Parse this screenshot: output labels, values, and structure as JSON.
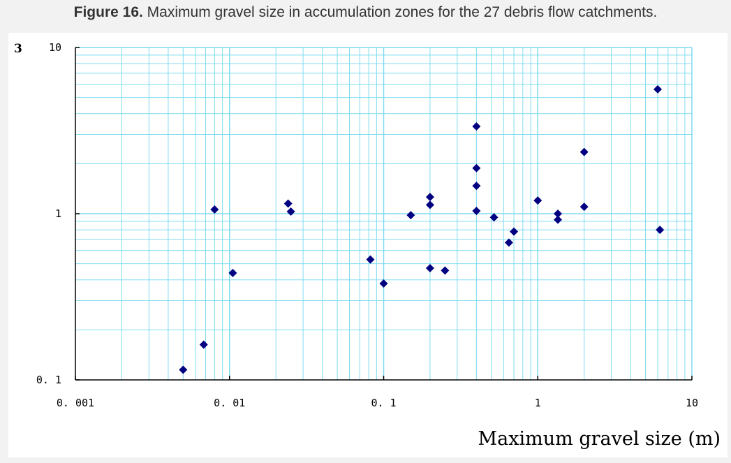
{
  "figure": {
    "label": "Figure 16.",
    "text": " Maximum gravel size in accumulation zones for the 27 debris flow catchments."
  },
  "chart_data": {
    "type": "scatter",
    "title": "",
    "xlabel": "Maximum gravel size (m)",
    "ylabel": "",
    "y_label_fragment": "3",
    "x_scale": "log",
    "y_scale": "log",
    "xlim": [
      0.001,
      10
    ],
    "ylim": [
      0.1,
      10
    ],
    "x_tick_labels": [
      "0. 001",
      "0. 01",
      "0. 1",
      "1",
      "10"
    ],
    "x_tick_values": [
      0.001,
      0.01,
      0.1,
      1,
      10
    ],
    "y_tick_labels": [
      "10",
      "1",
      "0. 1"
    ],
    "y_tick_values": [
      10,
      1,
      0.1
    ],
    "grid": true,
    "legend": "none",
    "marker": "diamond",
    "marker_color": "#000080",
    "grid_color": "#7fdcf0",
    "points": [
      {
        "x": 0.005,
        "y": 0.115
      },
      {
        "x": 0.0068,
        "y": 0.163
      },
      {
        "x": 0.008,
        "y": 1.06
      },
      {
        "x": 0.0105,
        "y": 0.44
      },
      {
        "x": 0.024,
        "y": 1.15
      },
      {
        "x": 0.025,
        "y": 1.03
      },
      {
        "x": 0.082,
        "y": 0.53
      },
      {
        "x": 0.1,
        "y": 0.38
      },
      {
        "x": 0.15,
        "y": 0.98
      },
      {
        "x": 0.2,
        "y": 1.26
      },
      {
        "x": 0.2,
        "y": 1.13
      },
      {
        "x": 0.2,
        "y": 0.47
      },
      {
        "x": 0.25,
        "y": 0.455
      },
      {
        "x": 0.4,
        "y": 3.35
      },
      {
        "x": 0.4,
        "y": 1.88
      },
      {
        "x": 0.4,
        "y": 1.47
      },
      {
        "x": 0.4,
        "y": 1.04
      },
      {
        "x": 0.52,
        "y": 0.95
      },
      {
        "x": 0.65,
        "y": 0.67
      },
      {
        "x": 0.7,
        "y": 0.78
      },
      {
        "x": 1.0,
        "y": 1.2
      },
      {
        "x": 1.35,
        "y": 1.0
      },
      {
        "x": 1.35,
        "y": 0.92
      },
      {
        "x": 2.0,
        "y": 2.35
      },
      {
        "x": 2.0,
        "y": 1.1
      },
      {
        "x": 6.0,
        "y": 5.6
      },
      {
        "x": 6.2,
        "y": 0.8
      }
    ]
  }
}
